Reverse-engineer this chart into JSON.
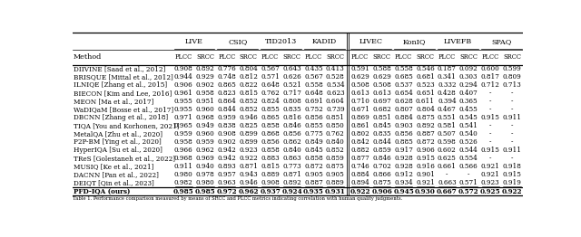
{
  "header_groups": [
    "LIVE",
    "CSIQ",
    "TID2013",
    "KADID",
    "LIVEC",
    "KonIQ",
    "LIVEFB",
    "SPAQ"
  ],
  "col_header": "Method",
  "methods": [
    "DIIVINE [Saad et al., 2012]",
    "BRISQUE [Mittal et al., 2012]",
    "ILNIQE [Zhang et al., 2015]",
    "BIECON [Kim and Lee, 2016]",
    "MEON [Ma et al., 2017]",
    "WaDIQaM [Bosse et al., 2017]",
    "DBCNN [Zhang et al., 2018]",
    "TIQA [You and Korhonen, 2021]",
    "MetalQA [Zhu et al., 2020]",
    "P2P-BM [Ying et al., 2020]",
    "HyperIQA [Su et al., 2020]",
    "TReS [Golestaneh et al., 2022]",
    "MUSIQ [Ke et al., 2021]",
    "DACNN [Pan et al., 2022]",
    "DEIQT [Qin et al., 2023]",
    "PFD-IQA (ours)"
  ],
  "method_name_parts": [
    [
      "DIIVINE ",
      "[Saad ",
      "et al.",
      ", 2012]"
    ],
    [
      "BRISQUE ",
      "[Mittal ",
      "et al.",
      ", 2012]"
    ],
    [
      "ILNIQE ",
      "[Zhang ",
      "et al.",
      ", 2015]"
    ],
    [
      "BIECON ",
      "[Kim and Lee, 2016]"
    ],
    [
      "MEON ",
      "[Ma ",
      "et al.",
      ", 2017]"
    ],
    [
      "WaDIQaM ",
      "[Bosse ",
      "et al.",
      ", 2017]"
    ],
    [
      "DBCNN ",
      "[Zhang ",
      "et al.",
      ", 2018]"
    ],
    [
      "TIQA ",
      "[You and Korhonen, 2021]"
    ],
    [
      "MetalQA ",
      "[Zhu ",
      "et al.",
      ", 2020]"
    ],
    [
      "P2P-BM ",
      "[Ying ",
      "et al.",
      ", 2020]"
    ],
    [
      "HyperIQA ",
      "[Su ",
      "et al.",
      ", 2020]"
    ],
    [
      "TReS ",
      "[Golestaneh ",
      "et al.",
      ", 2022]"
    ],
    [
      "MUSIQ ",
      "[Ke ",
      "et al.",
      ", 2021]"
    ],
    [
      "DACNN ",
      "[Pan ",
      "et al.",
      ", 2022]"
    ],
    [
      "DEIQT ",
      "[Qin ",
      "et al.",
      ", 2023]"
    ],
    [
      "PFD-IQA (ours)"
    ]
  ],
  "data": [
    [
      0.908,
      0.892,
      0.776,
      0.804,
      0.567,
      0.643,
      0.435,
      0.413,
      0.591,
      0.588,
      0.558,
      0.546,
      0.187,
      0.092,
      0.6,
      0.599
    ],
    [
      0.944,
      0.929,
      0.748,
      0.812,
      0.571,
      0.626,
      0.567,
      0.528,
      0.629,
      0.629,
      0.685,
      0.681,
      0.341,
      0.303,
      0.817,
      0.809
    ],
    [
      0.906,
      0.902,
      0.865,
      0.822,
      0.648,
      0.521,
      0.558,
      0.534,
      0.508,
      0.508,
      0.537,
      0.523,
      0.332,
      0.294,
      0.712,
      0.713
    ],
    [
      0.961,
      0.958,
      0.823,
      0.815,
      0.762,
      0.717,
      0.648,
      0.623,
      0.613,
      0.613,
      0.654,
      0.651,
      0.428,
      0.407,
      null,
      null
    ],
    [
      0.955,
      0.951,
      0.864,
      0.852,
      0.824,
      0.808,
      0.691,
      0.604,
      0.71,
      0.697,
      0.628,
      0.611,
      0.394,
      0.365,
      null,
      null
    ],
    [
      0.955,
      0.96,
      0.844,
      0.852,
      0.855,
      0.835,
      0.752,
      0.739,
      0.671,
      0.682,
      0.807,
      0.804,
      0.467,
      0.455,
      null,
      null
    ],
    [
      0.971,
      0.968,
      0.959,
      0.946,
      0.865,
      0.816,
      0.856,
      0.851,
      0.869,
      0.851,
      0.884,
      0.875,
      0.551,
      0.545,
      0.915,
      0.911
    ],
    [
      0.965,
      0.949,
      0.838,
      0.825,
      0.858,
      0.846,
      0.855,
      0.85,
      0.861,
      0.845,
      0.903,
      0.892,
      0.581,
      0.541,
      null,
      null
    ],
    [
      0.959,
      0.96,
      0.908,
      0.899,
      0.868,
      0.856,
      0.775,
      0.762,
      0.802,
      0.835,
      0.856,
      0.887,
      0.507,
      0.54,
      null,
      null
    ],
    [
      0.958,
      0.959,
      0.902,
      0.899,
      0.856,
      0.862,
      0.849,
      0.84,
      0.842,
      0.844,
      0.885,
      0.872,
      0.598,
      0.526,
      null,
      null
    ],
    [
      0.966,
      0.962,
      0.942,
      0.923,
      0.858,
      0.84,
      0.845,
      0.852,
      0.882,
      0.859,
      0.917,
      0.906,
      0.602,
      0.544,
      0.915,
      0.911
    ],
    [
      0.968,
      0.969,
      0.942,
      0.922,
      0.883,
      0.863,
      0.858,
      0.859,
      0.877,
      0.846,
      0.928,
      0.915,
      0.625,
      0.554,
      null,
      null
    ],
    [
      0.911,
      0.94,
      0.893,
      0.871,
      0.815,
      0.773,
      0.872,
      0.875,
      0.746,
      0.702,
      0.928,
      0.916,
      0.661,
      0.566,
      0.921,
      0.918
    ],
    [
      0.98,
      0.978,
      0.957,
      0.943,
      0.889,
      0.871,
      0.905,
      0.905,
      0.884,
      0.866,
      0.912,
      0.901,
      null,
      null,
      0.921,
      0.915
    ],
    [
      0.982,
      0.98,
      0.963,
      0.946,
      0.908,
      0.892,
      0.887,
      0.889,
      0.894,
      0.875,
      0.934,
      0.921,
      0.663,
      0.571,
      0.923,
      0.919
    ],
    [
      0.985,
      0.985,
      0.972,
      0.962,
      0.937,
      0.924,
      0.935,
      0.931,
      0.922,
      0.906,
      0.945,
      0.93,
      0.667,
      0.572,
      0.925,
      0.922
    ]
  ],
  "underline_row_idx": 14,
  "bold_row_idx": 15,
  "caption": "Table 1. Performance comparison measured by means of SRCC and PLCC metrics indicating correlation with human quality judgments.",
  "font_size": 5.2,
  "font_size_header": 5.8,
  "font_size_caption": 3.8
}
